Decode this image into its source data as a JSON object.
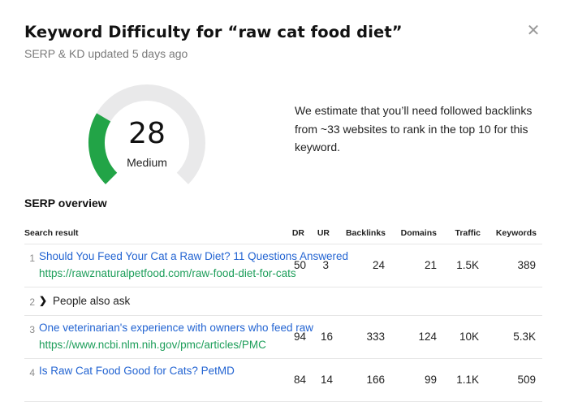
{
  "header": {
    "title": "Keyword Difficulty for “raw cat food diet”",
    "updated": "SERP & KD updated 5 days ago",
    "close_glyph": "✕"
  },
  "gauge": {
    "score": "28",
    "level": "Medium",
    "fill_fraction": 0.28,
    "fill_color": "#22a447",
    "track_color": "#e9e9ea"
  },
  "estimate_text": "We estimate that you’ll need followed backlinks from ~33 websites to rank in the top 10 for this keyword.",
  "serp": {
    "title": "SERP overview",
    "headers": {
      "result": "Search result",
      "dr": "DR",
      "ur": "UR",
      "backlinks": "Backlinks",
      "domains": "Domains",
      "traffic": "Traffic",
      "keywords": "Keywords"
    },
    "rows": [
      {
        "num": "1",
        "title": "Should You Feed Your Cat a Raw Diet? 11 Questions Answered",
        "url": "https://rawznaturalpetfood.com/raw-food-diet-for-cats",
        "dr": "50",
        "ur": "3",
        "backlinks": "24",
        "domains": "21",
        "traffic": "1.5K",
        "keywords": "389"
      },
      {
        "num": "2",
        "paa": "People also ask"
      },
      {
        "num": "3",
        "title": "One veterinarian's experience with owners who feed raw",
        "url": "https://www.ncbi.nlm.nih.gov/pmc/articles/PMC",
        "dr": "94",
        "ur": "16",
        "backlinks": "333",
        "domains": "124",
        "traffic": "10K",
        "keywords": "5.3K"
      },
      {
        "num": "4",
        "title": "Is Raw Cat Food Good for Cats? PetMD",
        "url": "",
        "dr": "84",
        "ur": "14",
        "backlinks": "166",
        "domains": "99",
        "traffic": "1.1K",
        "keywords": "509"
      }
    ]
  },
  "colors": {
    "link": "#2364d2",
    "url": "#1d9e5a",
    "divider": "#e6e6e6"
  }
}
